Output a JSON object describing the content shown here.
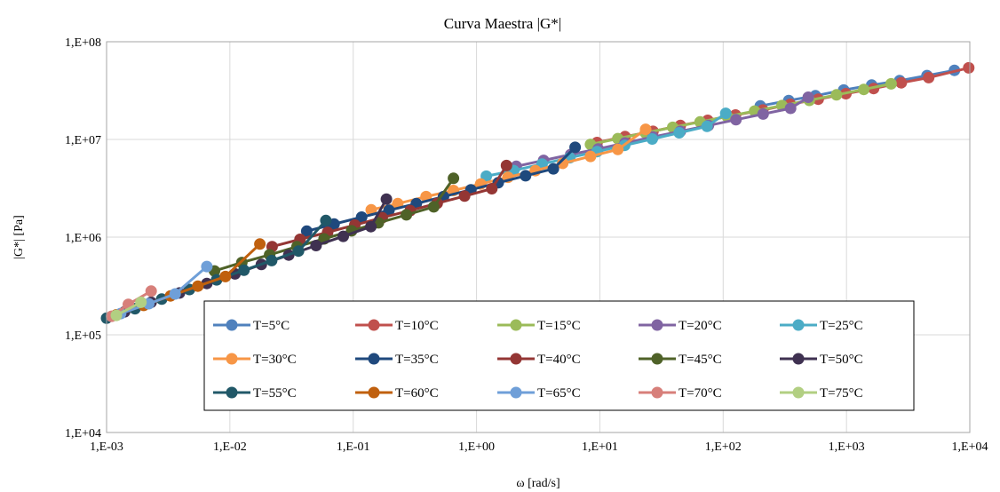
{
  "chart_data": {
    "type": "line",
    "title": "Curva Maestra |G*|",
    "xlabel": "ω [rad/s]",
    "ylabel": "|G*| [Pa]",
    "x_scale": "log",
    "y_scale": "log",
    "xlim": [
      0.001,
      10000
    ],
    "ylim": [
      10000,
      100000000
    ],
    "x_ticks": [
      {
        "value": 0.001,
        "label": "1,E-03"
      },
      {
        "value": 0.01,
        "label": "1,E-02"
      },
      {
        "value": 0.1,
        "label": "1,E-01"
      },
      {
        "value": 1,
        "label": "1,E+00"
      },
      {
        "value": 10,
        "label": "1,E+01"
      },
      {
        "value": 100,
        "label": "1,E+02"
      },
      {
        "value": 1000,
        "label": "1,E+03"
      },
      {
        "value": 10000,
        "label": "1,E+04"
      }
    ],
    "y_ticks": [
      {
        "value": 10000,
        "label": "1,E+04"
      },
      {
        "value": 100000,
        "label": "1,E+05"
      },
      {
        "value": 1000000,
        "label": "1,E+06"
      },
      {
        "value": 10000000,
        "label": "1,E+07"
      },
      {
        "value": 100000000,
        "label": "1,E+08"
      }
    ],
    "grid": true,
    "legend_position": "bottom-right",
    "series": [
      {
        "name": "T=5°C",
        "color": "#4f81bd",
        "x": [
          200,
          340,
          560,
          950,
          1600,
          2700,
          4500,
          7500
        ],
        "y": [
          22000000,
          25000000,
          28000000,
          32000000,
          36000000,
          40000000,
          45000000,
          51000000
        ]
      },
      {
        "name": "T=10°C",
        "color": "#c0504d",
        "x": [
          9.5,
          16,
          27,
          45,
          75,
          126,
          210,
          350,
          590,
          990,
          1660,
          2780,
          4640,
          9800
        ],
        "y": [
          9300000,
          10700000,
          12100000,
          13900000,
          15700000,
          17800000,
          20000000,
          22900000,
          25800000,
          29400000,
          33200000,
          38000000,
          42900000,
          54000000
        ]
      },
      {
        "name": "T=15°C",
        "color": "#9bbb59",
        "x": [
          8.4,
          14,
          23.4,
          39,
          65,
          108,
          180,
          300,
          500,
          830,
          1380,
          2300
        ],
        "y": [
          8900000,
          10200000,
          11700000,
          13300000,
          15100000,
          17200000,
          19500000,
          22200000,
          25100000,
          28600000,
          32500000,
          37100000
        ]
      },
      {
        "name": "T=20°C",
        "color": "#8064a2",
        "x": [
          2.1,
          3.5,
          5.8,
          9.7,
          16,
          27,
          45,
          76,
          127,
          211,
          352,
          490
        ],
        "y": [
          5300000,
          6100000,
          7000000,
          8000000,
          9200000,
          10600000,
          12100000,
          13900000,
          15900000,
          18200000,
          20800000,
          27000000
        ]
      },
      {
        "name": "T=25°C",
        "color": "#4bacc6",
        "x": [
          1.2,
          2.0,
          3.4,
          5.7,
          9.5,
          15.9,
          26.6,
          44,
          74,
          105
        ],
        "y": [
          4200000,
          4800000,
          5600000,
          6500000,
          7500000,
          8700000,
          10100000,
          11700000,
          13600000,
          18500000
        ]
      },
      {
        "name": "T=30°C",
        "color": "#f79646",
        "x": [
          0.14,
          0.23,
          0.39,
          0.65,
          1.08,
          1.8,
          3.0,
          5.0,
          8.4,
          14,
          23.5
        ],
        "y": [
          1900000,
          2200000,
          2600000,
          3000000,
          3500000,
          4100000,
          4800000,
          5700000,
          6700000,
          7900000,
          12700000
        ]
      },
      {
        "name": "T=35°C",
        "color": "#1f497d",
        "x": [
          0.042,
          0.07,
          0.117,
          0.195,
          0.325,
          0.54,
          0.9,
          1.5,
          2.5,
          4.2,
          6.3
        ],
        "y": [
          1150000,
          1360000,
          1600000,
          1880000,
          2200000,
          2600000,
          3050000,
          3600000,
          4250000,
          5000000,
          8300000
        ]
      },
      {
        "name": "T=40°C",
        "color": "#943634",
        "x": [
          0.022,
          0.037,
          0.062,
          0.103,
          0.172,
          0.29,
          0.48,
          0.8,
          1.33,
          1.75
        ],
        "y": [
          800000,
          950000,
          1120000,
          1330000,
          1580000,
          1870000,
          2220000,
          2630000,
          3130000,
          5400000
        ]
      },
      {
        "name": "T=45°C",
        "color": "#4f6228",
        "x": [
          0.0075,
          0.0125,
          0.021,
          0.035,
          0.058,
          0.097,
          0.16,
          0.27,
          0.45,
          0.65
        ],
        "y": [
          450000,
          550000,
          660000,
          800000,
          960000,
          1160000,
          1400000,
          1690000,
          2040000,
          4000000
        ]
      },
      {
        "name": "T=50°C",
        "color": "#3f3151",
        "x": [
          0.0014,
          0.0023,
          0.0039,
          0.0065,
          0.011,
          0.018,
          0.03,
          0.05,
          0.083,
          0.139,
          0.186
        ],
        "y": [
          172000,
          215000,
          268000,
          335000,
          420000,
          525000,
          655000,
          820000,
          1020000,
          1280000,
          2450000
        ]
      },
      {
        "name": "T=55°C",
        "color": "#215868",
        "x": [
          0.001,
          0.0017,
          0.0028,
          0.0047,
          0.0078,
          0.013,
          0.0218,
          0.036,
          0.06
        ],
        "y": [
          148000,
          185000,
          232000,
          291000,
          365000,
          458000,
          575000,
          720000,
          1480000
        ]
      },
      {
        "name": "T=60°C",
        "color": "#c0600e",
        "x": [
          0.0012,
          0.002,
          0.0033,
          0.0055,
          0.0092,
          0.0175
        ],
        "y": [
          160000,
          200000,
          250000,
          315000,
          395000,
          850000
        ]
      },
      {
        "name": "T=65°C",
        "color": "#6f9fd8",
        "x": [
          0.0013,
          0.0022,
          0.0036,
          0.0065
        ],
        "y": [
          165000,
          208000,
          262000,
          500000
        ]
      },
      {
        "name": "T=70°C",
        "color": "#d77f7a",
        "x": [
          0.0011,
          0.0015,
          0.0023
        ],
        "y": [
          155000,
          205000,
          280000
        ]
      },
      {
        "name": "T=75°C",
        "color": "#b2cf82",
        "x": [
          0.0012,
          0.0019
        ],
        "y": [
          158000,
          215000
        ]
      }
    ]
  }
}
